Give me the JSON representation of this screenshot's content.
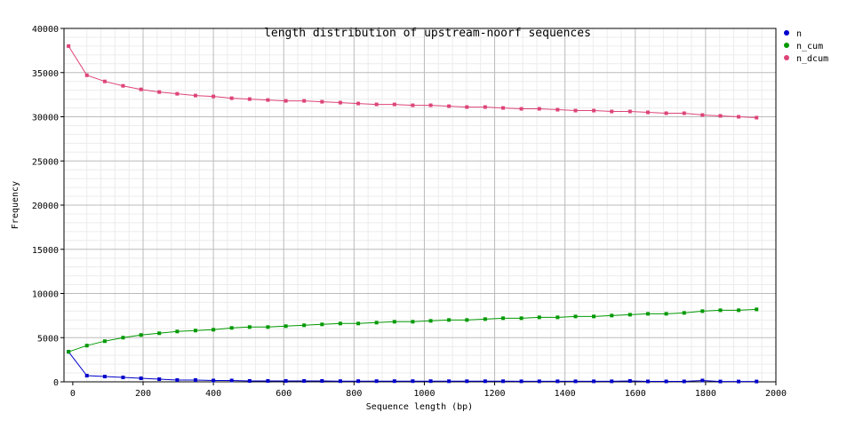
{
  "chart_data": {
    "type": "line",
    "title": "length distribution of upstream-noorf sequences",
    "xlabel": "Sequence length (bp)",
    "ylabel": "Frequency",
    "xlim": [
      -25,
      2000
    ],
    "ylim": [
      0,
      40000
    ],
    "xticks": [
      0,
      200,
      400,
      600,
      800,
      1000,
      1200,
      1400,
      1600,
      1800,
      2000
    ],
    "yticks": [
      0,
      5000,
      10000,
      15000,
      20000,
      25000,
      30000,
      35000,
      40000
    ],
    "grid": true,
    "legend_position": "right",
    "x": [
      -12,
      40,
      91,
      143,
      194,
      246,
      297,
      349,
      400,
      452,
      503,
      555,
      606,
      658,
      709,
      761,
      812,
      864,
      915,
      967,
      1018,
      1070,
      1121,
      1173,
      1224,
      1276,
      1327,
      1379,
      1430,
      1482,
      1533,
      1585,
      1636,
      1688,
      1739,
      1791,
      1842,
      1894,
      1945
    ],
    "series": [
      {
        "name": "n",
        "color": "#0000cc",
        "values": [
          3400,
          700,
          600,
          500,
          400,
          300,
          200,
          200,
          150,
          150,
          100,
          100,
          100,
          100,
          100,
          80,
          80,
          80,
          80,
          80,
          80,
          70,
          70,
          70,
          70,
          60,
          60,
          60,
          60,
          60,
          60,
          100,
          50,
          50,
          50,
          150,
          40,
          40,
          40
        ]
      },
      {
        "name": "n_cum",
        "color": "#009900",
        "values": [
          3400,
          4100,
          4600,
          5000,
          5300,
          5500,
          5700,
          5800,
          5900,
          6100,
          6200,
          6200,
          6300,
          6400,
          6500,
          6600,
          6600,
          6700,
          6800,
          6800,
          6900,
          7000,
          7000,
          7100,
          7200,
          7200,
          7300,
          7300,
          7400,
          7400,
          7500,
          7600,
          7700,
          7700,
          7800,
          8000,
          8100,
          8100,
          8200
        ]
      },
      {
        "name": "n_dcum",
        "color": "#dd4477",
        "values": [
          38000,
          34700,
          34000,
          33500,
          33100,
          32800,
          32600,
          32400,
          32300,
          32100,
          32000,
          31900,
          31800,
          31800,
          31700,
          31600,
          31500,
          31400,
          31400,
          31300,
          31300,
          31200,
          31100,
          31100,
          31000,
          30900,
          30900,
          30800,
          30700,
          30700,
          30600,
          30600,
          30500,
          30400,
          30400,
          30200,
          30100,
          30000,
          29900
        ]
      }
    ]
  }
}
